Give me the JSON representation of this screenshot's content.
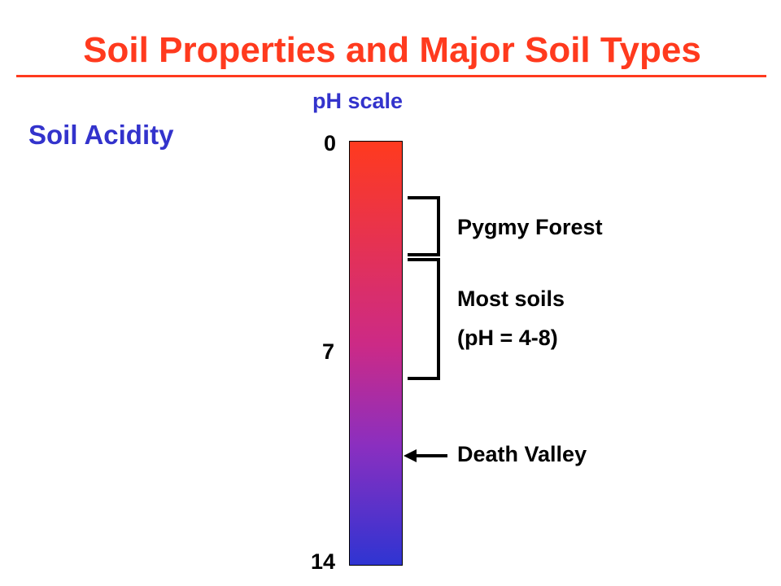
{
  "slide": {
    "title": "Soil Properties and Major Soil Types",
    "section_label": "Soil Acidity"
  },
  "scale": {
    "label": "pH scale",
    "ticks": [
      {
        "value": 0,
        "label": "0"
      },
      {
        "value": 7,
        "label": "7"
      },
      {
        "value": 14,
        "label": "14"
      }
    ],
    "gradient_colors": [
      "#ff3a1e",
      "#cc2a86",
      "#8a2fc0",
      "#2f34d2"
    ]
  },
  "annotations": {
    "pygmy": {
      "label": "Pygmy Forest"
    },
    "most": {
      "line1": "Most soils",
      "line2": "(pH = 4-8)"
    },
    "death": {
      "label": "Death Valley"
    }
  },
  "colors": {
    "title": "#ff3a1e",
    "accent_blue": "#3333cc",
    "text": "#000000"
  }
}
